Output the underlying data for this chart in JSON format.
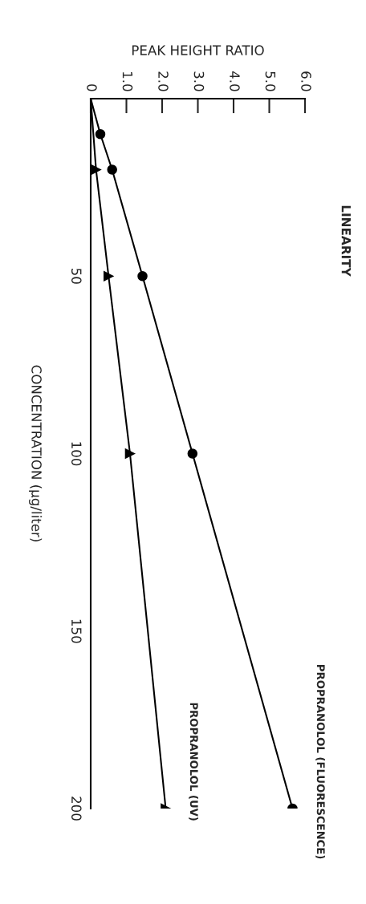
{
  "chart_data": {
    "type": "line",
    "title": "LINEARITY",
    "xlabel": "PEAK HEIGHT RATIO",
    "ylabel": "CONCENTRATION (µg/liter)",
    "xlim": [
      0,
      6.0
    ],
    "xticks": [
      0,
      {
        "value": 1.0,
        "label": "1.0"
      },
      {
        "value": 2.0,
        "label": "2.0"
      },
      {
        "value": 3.0,
        "label": "3.0"
      },
      {
        "value": 4.0,
        "label": "4.0"
      },
      {
        "value": 5.0,
        "label": "5.0"
      },
      {
        "value": 6.0,
        "label": "6.0"
      }
    ],
    "ylim": [
      200,
      0
    ],
    "yticks": [
      50,
      100,
      150,
      200
    ],
    "grid": false,
    "legend": false,
    "series": [
      {
        "name": "PROPRANOLOL (FLUORESCENCE)",
        "color": "#000000",
        "marker": "circle",
        "x": [
          0,
          0.27,
          0.6,
          1.45,
          2.85,
          5.65
        ],
        "values": [
          0,
          10,
          20,
          50,
          100,
          200
        ]
      },
      {
        "name": "PROPRANOLOL (UV)",
        "color": "#000000",
        "marker": "triangle",
        "x": [
          0,
          0.15,
          0.5,
          1.1,
          2.1
        ],
        "values": [
          0,
          20,
          50,
          100,
          200
        ]
      }
    ]
  }
}
